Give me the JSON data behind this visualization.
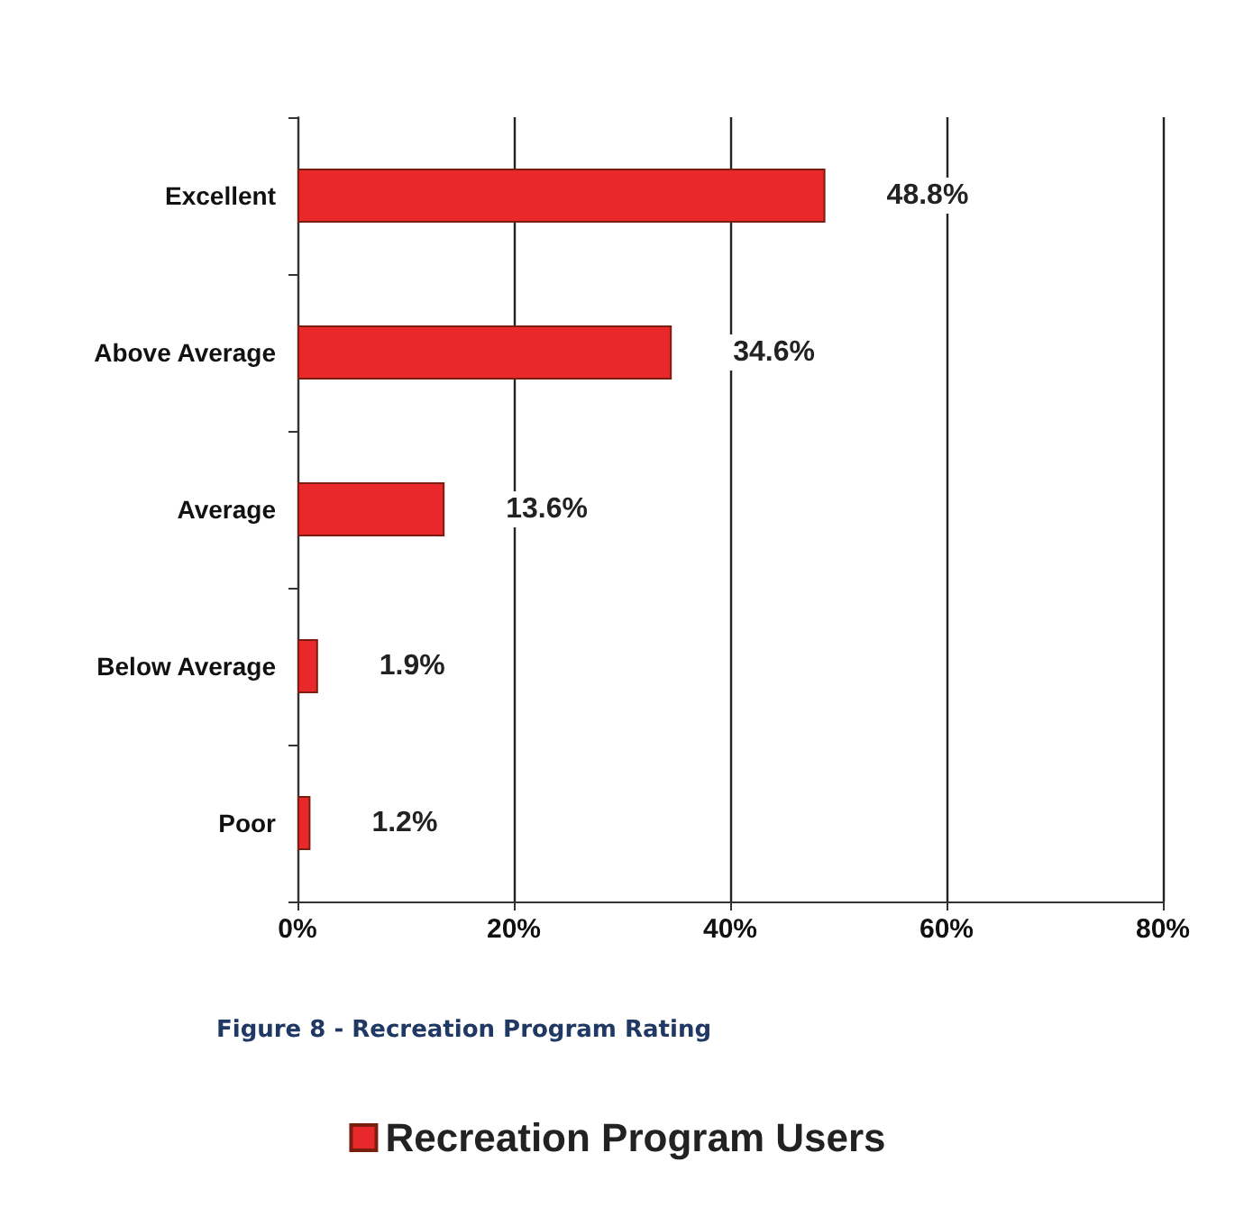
{
  "chart_data": {
    "type": "bar",
    "orientation": "horizontal",
    "categories": [
      "Excellent",
      "Above Average",
      "Average",
      "Below Average",
      "Poor"
    ],
    "series": [
      {
        "name": "Recreation Program Users",
        "color": "#e8282b",
        "values": [
          48.8,
          34.6,
          13.6,
          1.9,
          1.2
        ],
        "value_labels": [
          "48.8%",
          "34.6%",
          "13.6%",
          "1.9%",
          "1.2%"
        ]
      }
    ],
    "xlim": [
      0,
      80
    ],
    "xticks": [
      {
        "value": 0,
        "label": "0%"
      },
      {
        "value": 20,
        "label": "20%"
      },
      {
        "value": 40,
        "label": "40%"
      },
      {
        "value": 60,
        "label": "60%"
      },
      {
        "value": 80,
        "label": "80%"
      }
    ],
    "grid": "x",
    "legend": "bottom",
    "annotations": [
      "Figure 8 - Recreation Program Rating"
    ]
  }
}
